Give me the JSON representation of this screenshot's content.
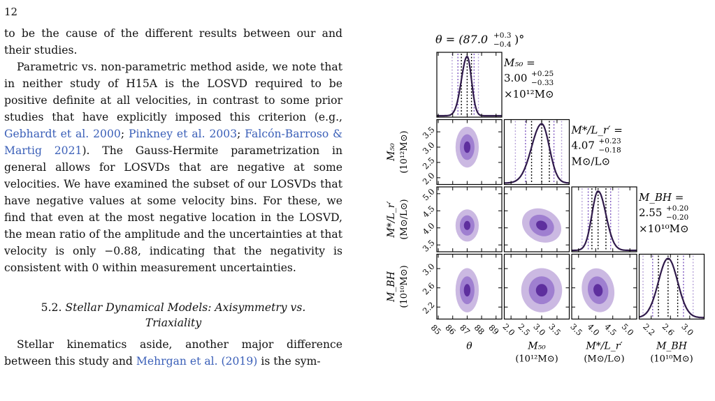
{
  "page_number": "12",
  "paragraphs": {
    "p1": "to be the cause of the different results between our and their studies.",
    "p2_a": "Parametric vs. non-parametric method aside, we note that in neither study of H15A is the LOSVD required to be positive definite at all velocities, in contrast to some prior studies that have explicitly imposed this criterion (e.g., ",
    "p2_cite1": "Gebhardt et al. 2000",
    "p2_sep1": "; ",
    "p2_cite2": "Pinkney et al. 2003",
    "p2_sep2": "; ",
    "p2_cite3": "Falcón-Barroso & Martig 2021",
    "p2_b": ").  The Gauss-Hermite parametrization in general allows for LOSVDs that are negative at some velocities. We have examined the subset of our LOSVDs that have negative values at some velocity bins. For these, we find that even at the most negative location in the LOSVD, the mean ratio of the amplitude and the uncertainties at that velocity is only −0.88, indicating that the negativity is consistent with 0 within measurement uncertainties.",
    "p3_a": "Stellar kinematics aside, another major difference between this study and ",
    "p3_cite": "Mehrgan et al. (2019)",
    "p3_b": " is the sym-"
  },
  "section": {
    "number": "5.2.",
    "title_line1": "Stellar Dynamical Models: Axisymmetry vs.",
    "title_line2": "Triaxiality"
  },
  "colors": {
    "light": "#cbb9e2",
    "mid": "#9f7fd0",
    "dark": "#5e2f9e",
    "curve": "#2f1a4a",
    "vline_outer": "#b7a2d8",
    "vline_inner": "#7f58c0",
    "median": "#000000"
  },
  "chart_data": {
    "type": "corner",
    "parameters": [
      {
        "key": "theta",
        "axis_label": "θ",
        "axis_unit": "",
        "ticks": [
          "85",
          "86",
          "87",
          "88",
          "89"
        ],
        "range": [
          84.9,
          89.4
        ]
      },
      {
        "key": "M50",
        "axis_label": "M₅₀",
        "axis_unit": "(10¹²M⊙)",
        "ticks": [
          "2.0",
          "2.5",
          "3.0",
          "3.5"
        ],
        "range": [
          1.78,
          3.9
        ]
      },
      {
        "key": "ML",
        "axis_label": "M*/L_r′",
        "axis_unit": "(M⊙/L⊙)",
        "ticks": [
          "3.5",
          "4.0",
          "4.5",
          "5.0"
        ],
        "range": [
          3.3,
          5.2
        ]
      },
      {
        "key": "MBH",
        "axis_label": "M_BH",
        "axis_unit": "(10¹⁰M⊙)",
        "ticks": [
          "2.2",
          "2.6",
          "3.0"
        ],
        "range": [
          1.95,
          3.3
        ]
      }
    ],
    "marginal_titles": [
      {
        "line1": "θ = (87.0",
        "sup": "+0.3",
        "sub": "−0.4",
        "tail": ")°"
      },
      {
        "line1": "M₅₀ =",
        "line2_main": "3.00",
        "sup": "+0.25",
        "sub": "−0.33",
        "line3": "×10¹²M⊙"
      },
      {
        "line1": "M*/L_r′ =",
        "line2_main": "4.07",
        "sup": "+0.23",
        "sub": "−0.18",
        "line3": "M⊙/L⊙"
      },
      {
        "line1": "M_BH =",
        "line2_main": "2.55",
        "sup": "+0.20",
        "sub": "−0.20",
        "line3": "×10¹⁰M⊙"
      }
    ],
    "summary": {
      "theta": {
        "median": 87.0,
        "plus": 0.3,
        "minus": 0.4
      },
      "M50": {
        "median": 3.0,
        "plus": 0.25,
        "minus": 0.33
      },
      "ML": {
        "median": 4.07,
        "plus": 0.23,
        "minus": 0.18
      },
      "MBH": {
        "median": 2.55,
        "plus": 0.2,
        "minus": 0.2
      }
    },
    "contour_levels": [
      "outer",
      "middle",
      "inner"
    ]
  }
}
